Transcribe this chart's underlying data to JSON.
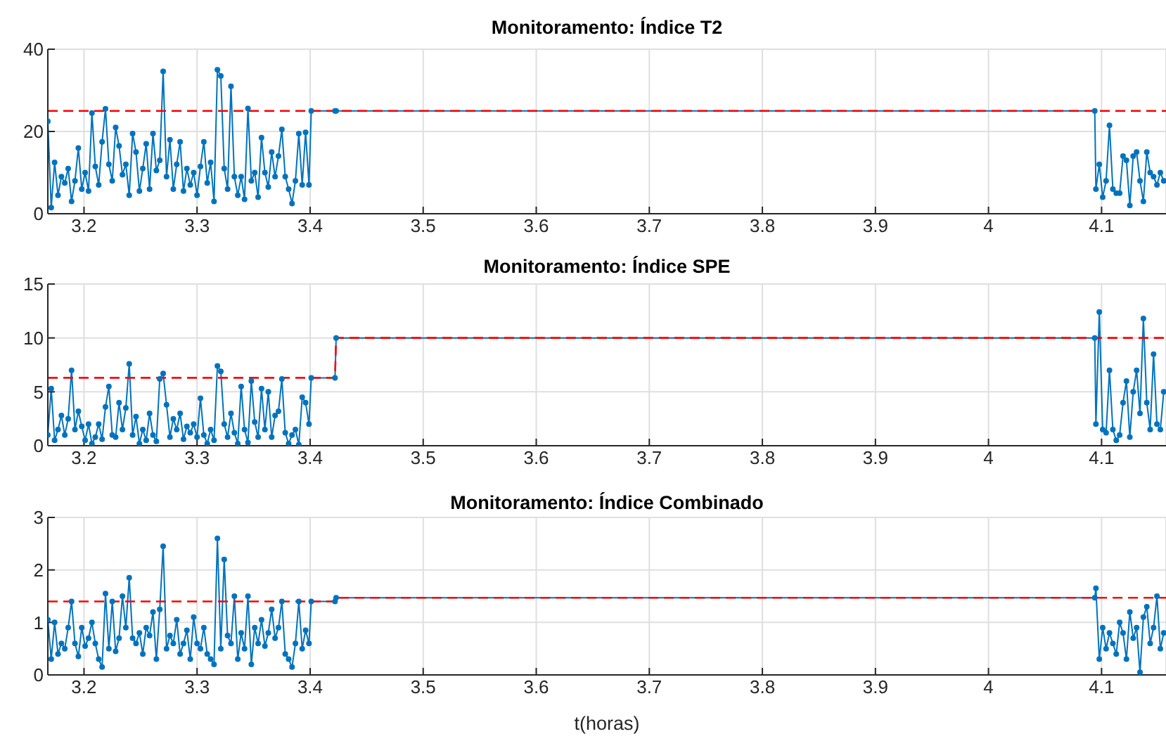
{
  "chart_data": [
    {
      "type": "line",
      "title": "Monitoramento: Índice T2",
      "xlim": [
        3.168,
        4.157
      ],
      "xticks": [
        3.2,
        3.3,
        3.4,
        3.5,
        3.6,
        3.7,
        3.8,
        3.9,
        4,
        4.1
      ],
      "ylim": [
        0,
        40
      ],
      "yticks": [
        0,
        20,
        40
      ],
      "grid": true,
      "x": [
        3.168,
        3.171,
        3.174,
        3.177,
        3.18,
        3.183,
        3.186,
        3.189,
        3.192,
        3.195,
        3.198,
        3.201,
        3.204,
        3.207,
        3.21,
        3.213,
        3.216,
        3.219,
        3.222,
        3.225,
        3.228,
        3.231,
        3.234,
        3.237,
        3.24,
        3.243,
        3.246,
        3.249,
        3.252,
        3.255,
        3.258,
        3.261,
        3.264,
        3.267,
        3.27,
        3.273,
        3.276,
        3.279,
        3.282,
        3.285,
        3.288,
        3.291,
        3.294,
        3.297,
        3.3,
        3.303,
        3.306,
        3.309,
        3.312,
        3.315,
        3.318,
        3.321,
        3.324,
        3.327,
        3.33,
        3.333,
        3.336,
        3.339,
        3.342,
        3.345,
        3.348,
        3.351,
        3.354,
        3.357,
        3.36,
        3.363,
        3.366,
        3.369,
        3.372,
        3.375,
        3.378,
        3.381,
        3.384,
        3.387,
        3.39,
        3.393,
        3.396,
        3.399,
        3.401,
        3.422,
        3.423,
        4.094,
        4.095,
        4.098,
        4.101,
        4.104,
        4.107,
        4.11,
        4.113,
        4.116,
        4.119,
        4.122,
        4.125,
        4.128,
        4.131,
        4.134,
        4.137,
        4.14,
        4.143,
        4.146,
        4.149,
        4.152,
        4.155
      ],
      "series": [
        {
          "color": "#0072bd",
          "marker": "circle",
          "values": [
            22.5,
            1.5,
            12.5,
            4.5,
            9,
            7.5,
            11,
            3,
            8,
            16,
            6,
            10,
            5.5,
            24.5,
            11.5,
            7,
            17.5,
            25.5,
            12,
            8,
            21,
            16.5,
            9.5,
            12,
            4.5,
            19.5,
            15,
            5.5,
            11,
            17,
            6,
            19.5,
            10.5,
            13,
            34.6,
            9,
            18,
            6,
            12,
            17.5,
            5.5,
            11,
            7,
            10,
            4.5,
            11.5,
            17.5,
            7.5,
            12.5,
            3,
            35,
            33.5,
            11,
            6,
            31,
            9,
            4.5,
            9,
            3.5,
            25.6,
            8,
            10,
            4,
            18.5,
            10,
            6.5,
            15,
            9,
            14,
            20.5,
            9,
            6,
            2.5,
            8,
            19.5,
            7,
            19.8,
            7,
            25,
            25,
            25,
            25,
            6,
            12,
            4,
            8,
            21.5,
            6,
            5,
            5,
            14,
            13,
            2,
            14,
            15,
            8,
            3,
            15,
            10,
            9,
            7,
            10,
            8
          ]
        },
        {
          "color": "#ff0000",
          "marker": "none",
          "line_style": "dashed",
          "x": [
            3.168,
            4.157
          ],
          "values": [
            25,
            25
          ]
        }
      ]
    },
    {
      "type": "line",
      "title": "Monitoramento: Índice SPE",
      "xlim": [
        3.168,
        4.157
      ],
      "xticks": [
        3.2,
        3.3,
        3.4,
        3.5,
        3.6,
        3.7,
        3.8,
        3.9,
        4,
        4.1
      ],
      "ylim": [
        0,
        15
      ],
      "yticks": [
        0,
        5,
        10,
        15
      ],
      "grid": true,
      "x": [
        3.168,
        3.171,
        3.174,
        3.177,
        3.18,
        3.183,
        3.186,
        3.189,
        3.192,
        3.195,
        3.198,
        3.201,
        3.204,
        3.207,
        3.21,
        3.213,
        3.216,
        3.219,
        3.222,
        3.225,
        3.228,
        3.231,
        3.234,
        3.237,
        3.24,
        3.243,
        3.246,
        3.249,
        3.252,
        3.255,
        3.258,
        3.261,
        3.264,
        3.267,
        3.27,
        3.273,
        3.276,
        3.279,
        3.282,
        3.285,
        3.288,
        3.291,
        3.294,
        3.297,
        3.3,
        3.303,
        3.306,
        3.309,
        3.312,
        3.315,
        3.318,
        3.321,
        3.324,
        3.327,
        3.33,
        3.333,
        3.336,
        3.339,
        3.342,
        3.345,
        3.348,
        3.351,
        3.354,
        3.357,
        3.36,
        3.363,
        3.366,
        3.369,
        3.372,
        3.375,
        3.378,
        3.381,
        3.384,
        3.387,
        3.39,
        3.393,
        3.396,
        3.399,
        3.401,
        3.422,
        3.423,
        4.094,
        4.095,
        4.098,
        4.101,
        4.104,
        4.107,
        4.11,
        4.113,
        4.116,
        4.119,
        4.122,
        4.125,
        4.128,
        4.131,
        4.134,
        4.137,
        4.14,
        4.143,
        4.146,
        4.149,
        4.152,
        4.155
      ],
      "series": [
        {
          "color": "#0072bd",
          "marker": "circle",
          "values": [
            1,
            5.3,
            0.5,
            1.5,
            2.8,
            1,
            2.5,
            7,
            1.5,
            3.2,
            1.8,
            0.5,
            2,
            0.2,
            0.8,
            2,
            0.6,
            3.6,
            5.5,
            1,
            0.8,
            4,
            1.5,
            3.5,
            7.6,
            1,
            2.7,
            0.2,
            1.5,
            0.5,
            3,
            1,
            0.4,
            6.2,
            6.7,
            3.8,
            0.8,
            2.5,
            1.5,
            3,
            0.6,
            1.8,
            1.2,
            2,
            0.8,
            4.4,
            1,
            0.2,
            1.5,
            0.5,
            7.4,
            6.9,
            2,
            0.8,
            3,
            1.2,
            0.2,
            5.5,
            1.5,
            0.3,
            6,
            2.2,
            0.8,
            5.3,
            1.5,
            5,
            0.8,
            2.8,
            3.2,
            6.2,
            1.2,
            0.2,
            1,
            1.5,
            0.1,
            4.5,
            4,
            2,
            6.3,
            6.3,
            10,
            10,
            2,
            12.4,
            1.5,
            1.2,
            7,
            1.5,
            0.5,
            1,
            4,
            6,
            0.8,
            5,
            7,
            3,
            11.8,
            4,
            1.5,
            8.5,
            2,
            1.5,
            5
          ]
        },
        {
          "color": "#ff0000",
          "marker": "none",
          "line_style": "dashed",
          "x": [
            3.168,
            3.422,
            3.423,
            4.157
          ],
          "values": [
            6.3,
            6.3,
            10,
            10
          ]
        }
      ]
    },
    {
      "type": "line",
      "title": "Monitoramento: Índice Combinado",
      "xlabel": "t(horas)",
      "xlim": [
        3.168,
        4.157
      ],
      "xticks": [
        3.2,
        3.3,
        3.4,
        3.5,
        3.6,
        3.7,
        3.8,
        3.9,
        4,
        4.1
      ],
      "ylim": [
        0,
        3
      ],
      "yticks": [
        0,
        1,
        2,
        3
      ],
      "grid": true,
      "x": [
        3.168,
        3.171,
        3.174,
        3.177,
        3.18,
        3.183,
        3.186,
        3.189,
        3.192,
        3.195,
        3.198,
        3.201,
        3.204,
        3.207,
        3.21,
        3.213,
        3.216,
        3.219,
        3.222,
        3.225,
        3.228,
        3.231,
        3.234,
        3.237,
        3.24,
        3.243,
        3.246,
        3.249,
        3.252,
        3.255,
        3.258,
        3.261,
        3.264,
        3.267,
        3.27,
        3.273,
        3.276,
        3.279,
        3.282,
        3.285,
        3.288,
        3.291,
        3.294,
        3.297,
        3.3,
        3.303,
        3.306,
        3.309,
        3.312,
        3.315,
        3.318,
        3.321,
        3.324,
        3.327,
        3.33,
        3.333,
        3.336,
        3.339,
        3.342,
        3.345,
        3.348,
        3.351,
        3.354,
        3.357,
        3.36,
        3.363,
        3.366,
        3.369,
        3.372,
        3.375,
        3.378,
        3.381,
        3.384,
        3.387,
        3.39,
        3.393,
        3.396,
        3.399,
        3.401,
        3.422,
        3.423,
        4.094,
        4.095,
        4.098,
        4.101,
        4.104,
        4.107,
        4.11,
        4.113,
        4.116,
        4.119,
        4.122,
        4.125,
        4.128,
        4.131,
        4.134,
        4.137,
        4.14,
        4.143,
        4.146,
        4.149,
        4.152,
        4.155
      ],
      "series": [
        {
          "color": "#0072bd",
          "marker": "circle",
          "values": [
            1.05,
            0.3,
            1,
            0.4,
            0.6,
            0.5,
            0.9,
            1.4,
            0.6,
            0.35,
            0.9,
            0.55,
            0.7,
            1,
            0.6,
            0.3,
            0.15,
            1.55,
            0.5,
            1.4,
            0.45,
            0.7,
            1.5,
            0.9,
            1.85,
            0.7,
            0.6,
            0.8,
            0.4,
            0.9,
            0.75,
            1.2,
            0.3,
            1.25,
            2.45,
            0.5,
            0.75,
            0.6,
            1.05,
            0.4,
            0.6,
            0.85,
            0.3,
            1.1,
            0.6,
            0.5,
            0.9,
            0.4,
            0.3,
            0.2,
            2.6,
            0.5,
            2.2,
            0.75,
            0.6,
            1.5,
            0.3,
            0.8,
            0.5,
            1.5,
            0.2,
            0.9,
            0.6,
            1.05,
            0.55,
            0.8,
            1.25,
            0.7,
            0.9,
            1.4,
            0.4,
            0.3,
            0.15,
            0.6,
            1.4,
            0.5,
            0.85,
            0.6,
            1.4,
            1.4,
            1.47,
            1.47,
            1.65,
            0.3,
            0.9,
            0.5,
            0.8,
            0.6,
            0.4,
            1,
            0.8,
            0.3,
            1.2,
            0.7,
            0.9,
            0.05,
            1.1,
            1.3,
            0.6,
            0.9,
            1.5,
            0.5,
            0.8
          ]
        },
        {
          "color": "#ff0000",
          "marker": "none",
          "line_style": "dashed",
          "x": [
            3.168,
            3.422,
            3.423,
            4.157
          ],
          "values": [
            1.4,
            1.4,
            1.47,
            1.47
          ]
        }
      ]
    }
  ]
}
